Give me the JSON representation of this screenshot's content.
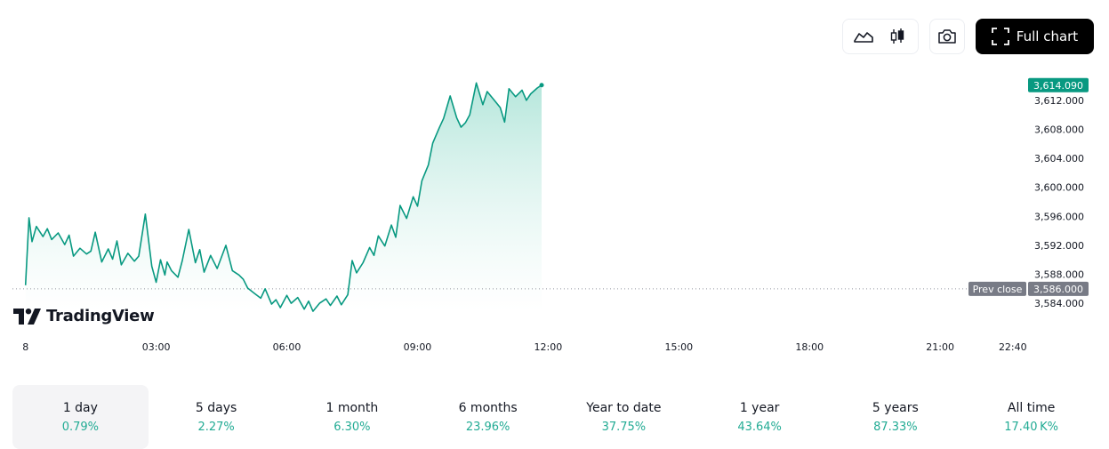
{
  "toolbar": {
    "full_chart_label": "Full chart"
  },
  "brand": {
    "logo_text": "TradingView"
  },
  "colors": {
    "line": "#089981",
    "area_top": "#bfe9df",
    "price_badge": "#089981",
    "prev_close_badge": "#787b86",
    "positive": "#22ab94"
  },
  "chart_data": {
    "type": "area",
    "y_ticks": [
      "3,612.000",
      "3,608.000",
      "3,604.000",
      "3,600.000",
      "3,596.000",
      "3,592.000",
      "3,588.000",
      "3,584.000"
    ],
    "y_tick_values": [
      3612,
      3608,
      3604,
      3600,
      3596,
      3592,
      3588,
      3584
    ],
    "x_ticks": [
      "8",
      "03:00",
      "06:00",
      "09:00",
      "12:00",
      "15:00",
      "18:00",
      "21:00",
      "22:40"
    ],
    "x_tick_hours": [
      0,
      3,
      6,
      9,
      12,
      15,
      18,
      21,
      22.667
    ],
    "ylim": [
      3582.3,
      3614.8
    ],
    "xlim_hours": [
      -0.3,
      23.1
    ],
    "last_price": 3614.09,
    "last_price_label": "3,614.090",
    "prev_close": 3586.0,
    "prev_close_value_label": "3,586.000",
    "prev_close_label": "Prev close",
    "series": [
      {
        "hours": [
          0.0,
          0.08,
          0.15,
          0.25,
          0.4,
          0.5,
          0.6,
          0.75,
          0.9,
          1.0,
          1.1,
          1.25,
          1.4,
          1.5,
          1.6,
          1.75,
          1.9,
          2.0,
          2.1,
          2.2,
          2.35,
          2.5,
          2.6,
          2.75,
          2.9,
          3.0,
          3.1,
          3.2,
          3.25,
          3.35,
          3.5,
          3.6,
          3.75,
          3.9,
          4.0,
          4.1,
          4.25,
          4.4,
          4.5,
          4.6,
          4.75,
          4.9,
          5.0,
          5.1,
          5.25,
          5.4,
          5.5,
          5.65,
          5.75,
          5.85,
          6.0,
          6.1,
          6.25,
          6.4,
          6.5,
          6.6,
          6.75,
          6.9,
          7.0,
          7.15,
          7.25,
          7.4,
          7.5,
          7.6,
          7.75,
          7.9,
          8.0,
          8.1,
          8.25,
          8.4,
          8.5,
          8.6,
          8.75,
          8.9,
          9.0,
          9.1,
          9.25,
          9.35,
          9.5,
          9.6,
          9.75,
          9.9,
          10.0,
          10.1,
          10.2,
          10.35,
          10.5,
          10.6,
          10.75,
          10.9,
          11.0,
          11.1,
          11.25,
          11.4,
          11.5,
          11.6,
          11.75,
          11.85
        ],
        "values": [
          3586.5,
          3595.8,
          3592.5,
          3594.6,
          3593.2,
          3594.3,
          3592.8,
          3593.7,
          3592.1,
          3593.4,
          3590.5,
          3591.6,
          3590.8,
          3591.2,
          3593.8,
          3589.7,
          3591.5,
          3590.1,
          3592.6,
          3589.3,
          3590.9,
          3589.8,
          3590.5,
          3596.3,
          3589.1,
          3586.9,
          3590.0,
          3587.9,
          3589.7,
          3588.5,
          3587.6,
          3589.9,
          3594.2,
          3589.6,
          3591.4,
          3588.3,
          3590.6,
          3588.8,
          3590.4,
          3592.0,
          3588.5,
          3587.9,
          3587.3,
          3586.1,
          3585.4,
          3584.7,
          3586.0,
          3583.9,
          3584.5,
          3583.4,
          3585.1,
          3584.0,
          3584.8,
          3583.2,
          3584.3,
          3582.9,
          3584.0,
          3584.6,
          3583.7,
          3585.0,
          3583.8,
          3585.2,
          3589.9,
          3588.2,
          3589.6,
          3591.7,
          3590.6,
          3593.3,
          3591.9,
          3594.8,
          3593.1,
          3597.5,
          3595.7,
          3598.7,
          3597.4,
          3600.9,
          3603.1,
          3606.1,
          3608.2,
          3609.5,
          3612.6,
          3609.6,
          3608.3,
          3608.9,
          3610.0,
          3614.4,
          3611.4,
          3613.2,
          3612.1,
          3611.0,
          3609.0,
          3613.6,
          3612.5,
          3613.4,
          3612.0,
          3612.9,
          3613.7,
          3614.1
        ]
      }
    ]
  },
  "periods": [
    {
      "label": "1 day",
      "value": "0.79%"
    },
    {
      "label": "5 days",
      "value": "2.27%"
    },
    {
      "label": "1 month",
      "value": "6.30%"
    },
    {
      "label": "6 months",
      "value": "23.96%"
    },
    {
      "label": "Year to date",
      "value": "37.75%"
    },
    {
      "label": "1 year",
      "value": "43.64%"
    },
    {
      "label": "5 years",
      "value": "87.33%"
    },
    {
      "label": "All time",
      "value": "17.40 K%"
    }
  ]
}
